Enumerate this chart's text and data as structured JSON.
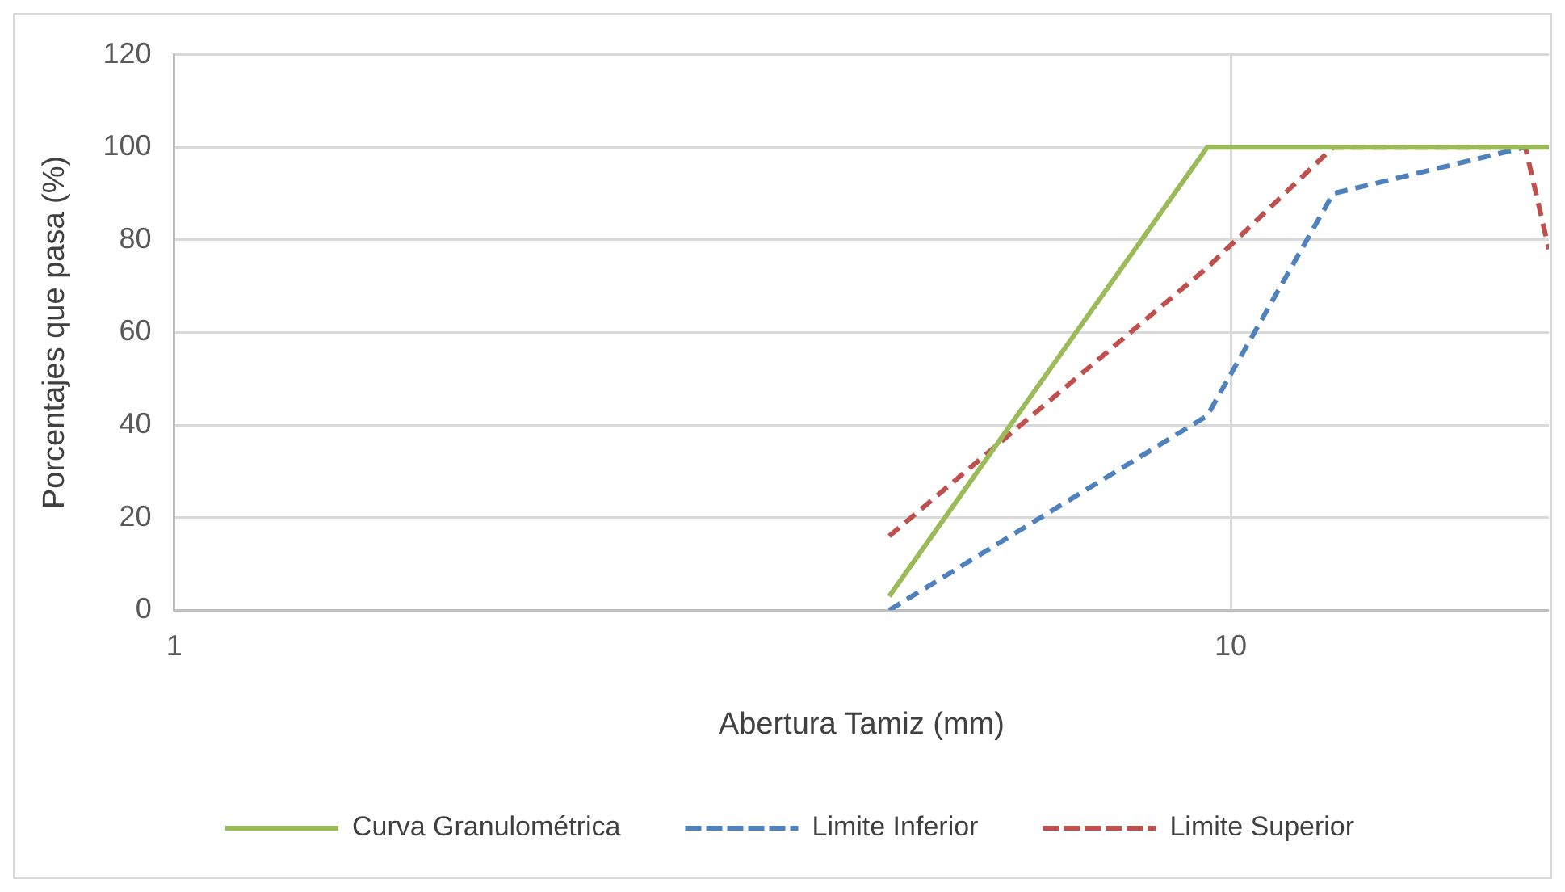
{
  "chart_data": {
    "type": "line",
    "xlabel": "Abertura Tamiz (mm)",
    "ylabel": "Porcentajes que pasa (%)",
    "log": "x",
    "xlim": [
      1,
      20
    ],
    "xticks": [
      1,
      10
    ],
    "ylim": [
      0,
      120
    ],
    "yticks": [
      0,
      20,
      40,
      60,
      80,
      100,
      120
    ],
    "grid": true,
    "legend": "bottom",
    "marker": "none",
    "series": [
      {
        "name": "Curva Granulométrica",
        "color": "#9bbb59",
        "line_style": "solid",
        "x": [
          4.75,
          9.5,
          12.5,
          19,
          20
        ],
        "values": [
          3,
          100,
          100,
          100,
          100
        ]
      },
      {
        "name": "Limite Inferior",
        "color": "#4f81bd",
        "line_style": "dashed",
        "x": [
          4.75,
          9.5,
          12.5,
          19
        ],
        "values": [
          0,
          42,
          90,
          100
        ]
      },
      {
        "name": "Limite Superior",
        "color": "#c0504d",
        "line_style": "dashed",
        "x": [
          4.75,
          9.5,
          12.5,
          19,
          20
        ],
        "values": [
          16,
          74,
          100,
          100,
          78
        ]
      }
    ]
  }
}
